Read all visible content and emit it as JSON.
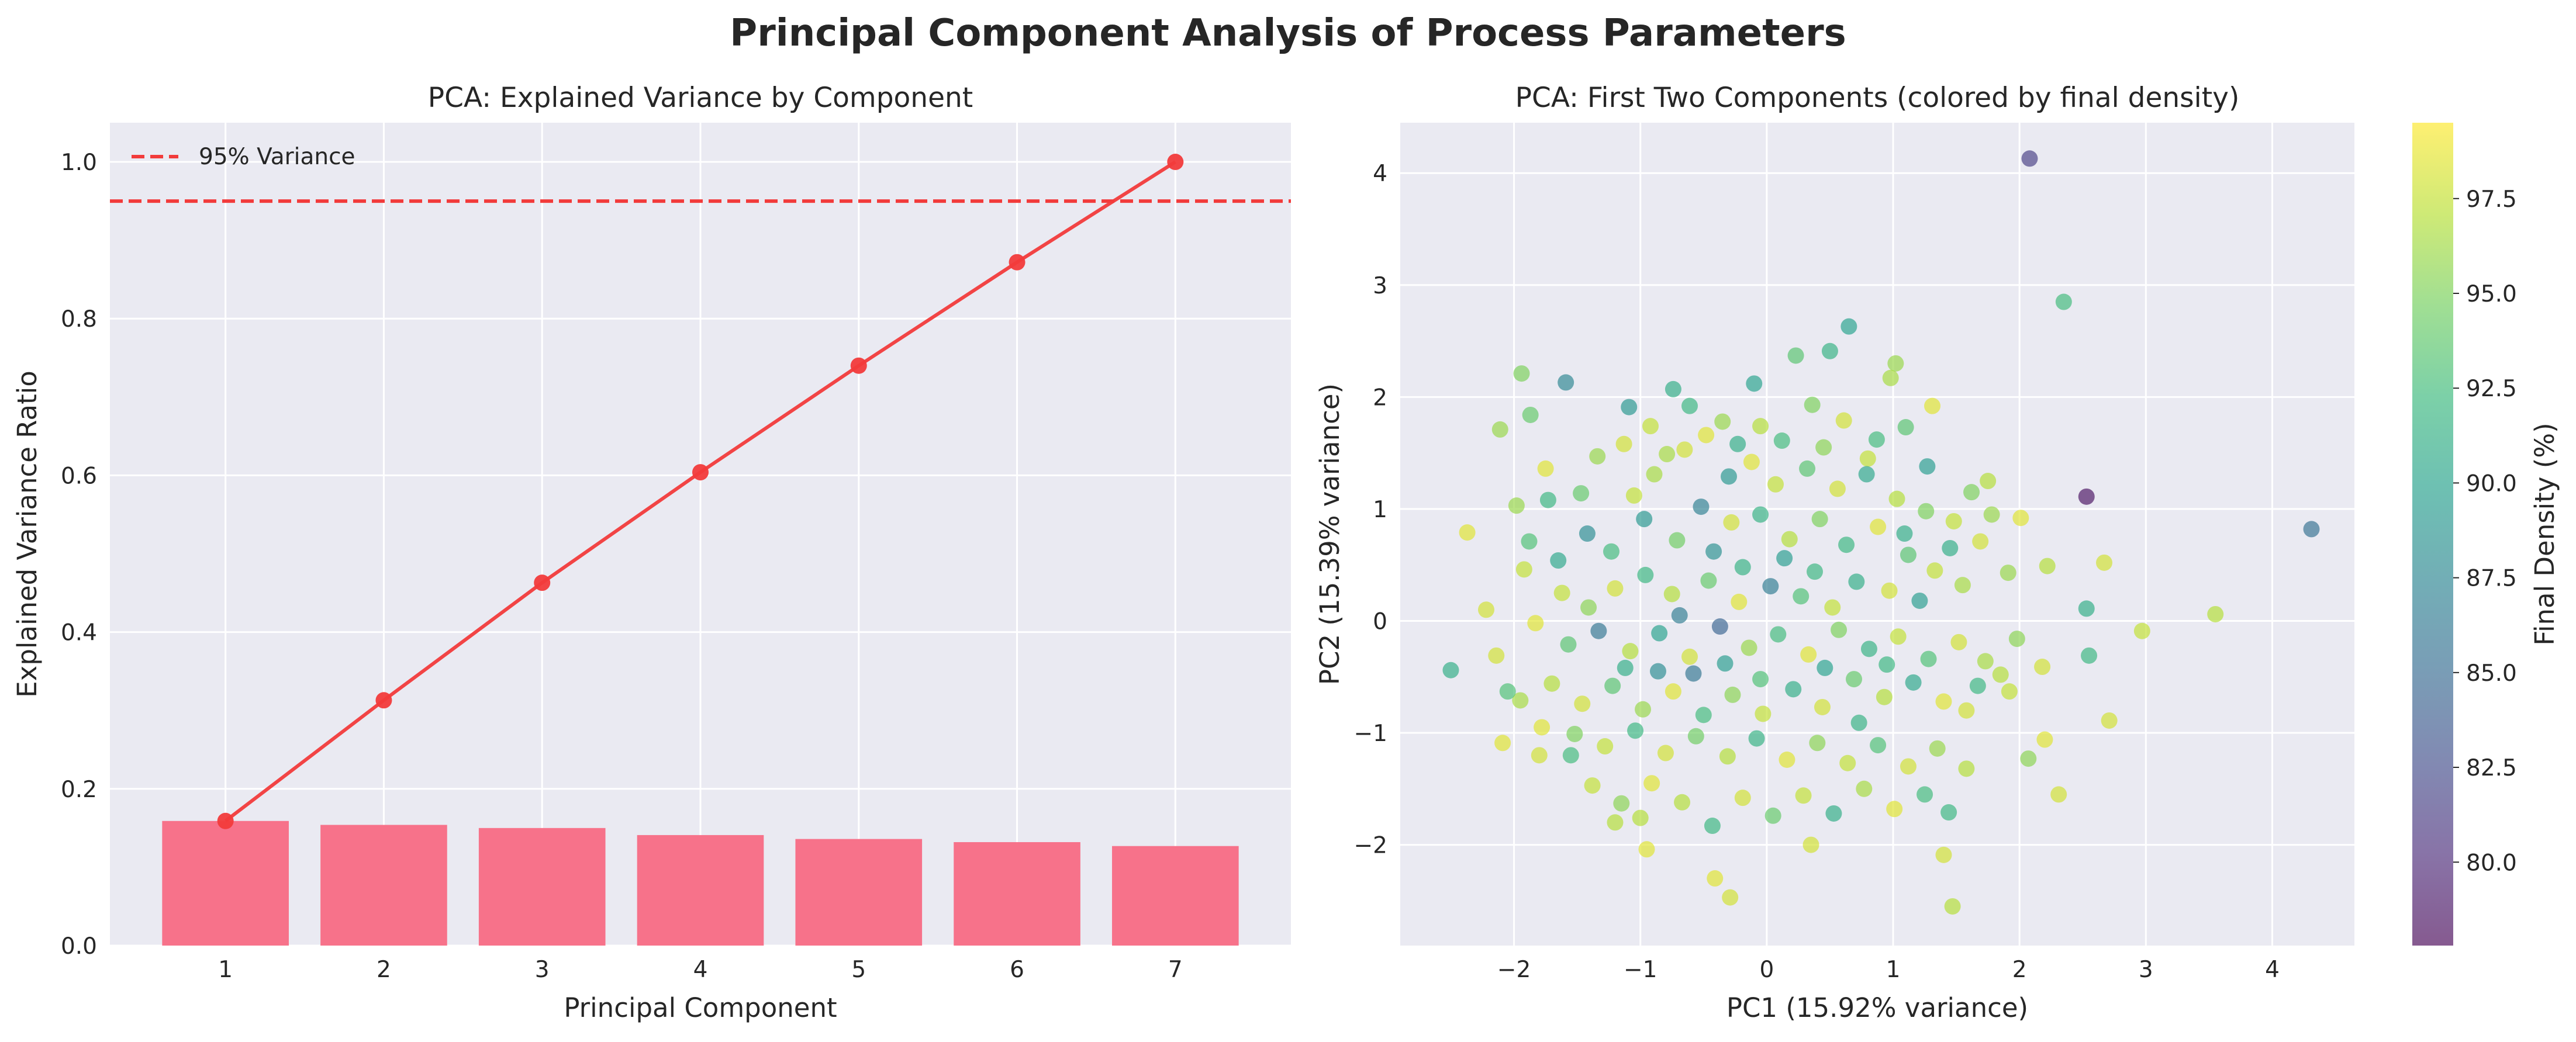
{
  "figure": {
    "suptitle": "Principal Component Analysis of Process Parameters",
    "colors": {
      "axes_bg": "#eaeaf2",
      "grid": "#ffffff",
      "bar": "#f7728a",
      "line": "#f23b3b",
      "threshold": "#f23b3b"
    }
  },
  "chart_data": [
    {
      "type": "bar",
      "title": "PCA: Explained Variance by Component",
      "xlabel": "Principal Component",
      "ylabel": "Explained Variance Ratio",
      "categories": [
        "1",
        "2",
        "3",
        "4",
        "5",
        "6",
        "7"
      ],
      "xlim": [
        0.27,
        7.73
      ],
      "ylim": [
        0,
        1.05
      ],
      "yticks": [
        0.0,
        0.2,
        0.4,
        0.6,
        0.8,
        1.0
      ],
      "ytick_labels": [
        "0.0",
        "0.2",
        "0.4",
        "0.6",
        "0.8",
        "1.0"
      ],
      "series": [
        {
          "type": "bar",
          "values": [
            0.159,
            0.154,
            0.15,
            0.141,
            0.136,
            0.132,
            0.127
          ]
        },
        {
          "type": "line",
          "values": [
            0.159,
            0.313,
            0.463,
            0.604,
            0.74,
            0.872,
            1.0
          ]
        }
      ],
      "threshold": {
        "value": 0.95,
        "label": "95% Variance",
        "style": "dashed"
      },
      "legend": {
        "position": "top-left",
        "entries": [
          "95% Variance"
        ]
      },
      "grid": true
    },
    {
      "type": "scatter",
      "title": "PCA: First Two Components (colored by final density)",
      "xlabel": "PC1 (15.92% variance)",
      "ylabel": "PC2 (15.39% variance)",
      "xlim": [
        -2.9,
        4.65
      ],
      "ylim": [
        -2.9,
        4.45
      ],
      "xticks": [
        -2,
        -1,
        0,
        1,
        2,
        3,
        4
      ],
      "xtick_labels": [
        "−2",
        "−1",
        "0",
        "1",
        "2",
        "3",
        "4"
      ],
      "yticks": [
        -2,
        -1,
        0,
        1,
        2,
        3,
        4
      ],
      "ytick_labels": [
        "−2",
        "−1",
        "0",
        "1",
        "2",
        "3",
        "4"
      ],
      "colormap": "viridis",
      "colorbar": {
        "label": "Final Density (%)",
        "range": [
          77.8,
          99.5
        ],
        "ticks": [
          80.0,
          82.5,
          85.0,
          87.5,
          90.0,
          92.5,
          95.0,
          97.5
        ],
        "tick_labels": [
          "80.0",
          "82.5",
          "85.0",
          "87.5",
          "90.0",
          "92.5",
          "95.0",
          "97.5"
        ]
      },
      "points": [
        {
          "x": 2.08,
          "y": 4.13,
          "c": 81.5
        },
        {
          "x": 2.35,
          "y": 2.85,
          "c": 92.5
        },
        {
          "x": 4.31,
          "y": 0.82,
          "c": 85.5
        },
        {
          "x": 2.53,
          "y": 1.11,
          "c": 78.5
        },
        {
          "x": 3.55,
          "y": 0.06,
          "c": 97.0
        },
        {
          "x": 2.97,
          "y": -0.09,
          "c": 97.5
        },
        {
          "x": 2.71,
          "y": -0.89,
          "c": 98.0
        },
        {
          "x": 2.55,
          "y": -0.31,
          "c": 92.0
        },
        {
          "x": 2.53,
          "y": 0.11,
          "c": 91.0
        },
        {
          "x": 2.67,
          "y": 0.52,
          "c": 98.0
        },
        {
          "x": 2.2,
          "y": -1.06,
          "c": 98.5
        },
        {
          "x": 2.31,
          "y": -1.55,
          "c": 98.0
        },
        {
          "x": 2.07,
          "y": -1.23,
          "c": 95.5
        },
        {
          "x": -2.5,
          "y": -0.44,
          "c": 91.0
        },
        {
          "x": -2.37,
          "y": 0.79,
          "c": 98.5
        },
        {
          "x": -2.22,
          "y": 0.1,
          "c": 98.0
        },
        {
          "x": -2.09,
          "y": -1.09,
          "c": 98.5
        },
        {
          "x": -2.11,
          "y": 1.71,
          "c": 96.0
        },
        {
          "x": -1.94,
          "y": 2.21,
          "c": 95.0
        },
        {
          "x": -1.87,
          "y": 1.84,
          "c": 94.0
        },
        {
          "x": -1.59,
          "y": 2.13,
          "c": 87.5
        },
        {
          "x": -0.74,
          "y": 2.07,
          "c": 91.0
        },
        {
          "x": 0.65,
          "y": 2.63,
          "c": 90.0
        },
        {
          "x": 0.5,
          "y": 2.41,
          "c": 91.5
        },
        {
          "x": 0.23,
          "y": 2.37,
          "c": 93.5
        },
        {
          "x": 1.02,
          "y": 2.3,
          "c": 96.0
        },
        {
          "x": 0.98,
          "y": 2.17,
          "c": 96.5
        },
        {
          "x": 1.31,
          "y": 1.92,
          "c": 98.5
        },
        {
          "x": -0.1,
          "y": 2.12,
          "c": 90.0
        },
        {
          "x": -0.35,
          "y": 1.78,
          "c": 96.0
        },
        {
          "x": -1.09,
          "y": 1.91,
          "c": 89.0
        },
        {
          "x": -0.41,
          "y": -2.3,
          "c": 98.5
        },
        {
          "x": -0.29,
          "y": -2.47,
          "c": 98.0
        },
        {
          "x": 1.47,
          "y": -2.55,
          "c": 97.0
        },
        {
          "x": 1.4,
          "y": -2.09,
          "c": 98.0
        },
        {
          "x": 0.35,
          "y": -2.0,
          "c": 98.0
        },
        {
          "x": -0.95,
          "y": -2.04,
          "c": 98.5
        },
        {
          "x": -1.0,
          "y": -1.76,
          "c": 97.0
        },
        {
          "x": -1.2,
          "y": -1.8,
          "c": 97.0
        },
        {
          "x": -1.55,
          "y": -1.2,
          "c": 92.5
        },
        {
          "x": -1.8,
          "y": -1.2,
          "c": 98.0
        },
        {
          "x": 1.44,
          "y": -1.71,
          "c": 92.0
        },
        {
          "x": 1.58,
          "y": -0.8,
          "c": 98.0
        },
        {
          "x": 1.85,
          "y": -0.48,
          "c": 97.0
        },
        {
          "x": 1.78,
          "y": 0.95,
          "c": 96.0
        },
        {
          "x": 1.62,
          "y": 1.15,
          "c": 95.0
        },
        {
          "x": 1.75,
          "y": 1.25,
          "c": 97.0
        },
        {
          "x": 1.45,
          "y": 0.65,
          "c": 91.0
        },
        {
          "x": 1.1,
          "y": 1.73,
          "c": 93.5
        },
        {
          "x": 1.27,
          "y": 1.38,
          "c": 89.5
        },
        {
          "x": 0.8,
          "y": 1.45,
          "c": 97.5
        },
        {
          "x": 0.45,
          "y": 1.55,
          "c": 95.5
        },
        {
          "x": 0.12,
          "y": 1.61,
          "c": 92.5
        },
        {
          "x": -0.12,
          "y": 1.42,
          "c": 98.5
        },
        {
          "x": -0.65,
          "y": 1.53,
          "c": 98.0
        },
        {
          "x": -0.89,
          "y": 1.31,
          "c": 96.5
        },
        {
          "x": -1.05,
          "y": 1.12,
          "c": 97.5
        },
        {
          "x": -1.47,
          "y": 1.14,
          "c": 94.0
        },
        {
          "x": -1.73,
          "y": 1.08,
          "c": 92.0
        },
        {
          "x": -1.98,
          "y": 1.03,
          "c": 96.0
        },
        {
          "x": -1.88,
          "y": 0.71,
          "c": 93.0
        },
        {
          "x": -1.65,
          "y": 0.54,
          "c": 90.5
        },
        {
          "x": -1.42,
          "y": 0.78,
          "c": 88.0
        },
        {
          "x": -1.23,
          "y": 0.62,
          "c": 92.5
        },
        {
          "x": -0.97,
          "y": 0.91,
          "c": 89.0
        },
        {
          "x": -0.71,
          "y": 0.72,
          "c": 94.5
        },
        {
          "x": -0.52,
          "y": 1.02,
          "c": 87.0
        },
        {
          "x": -0.28,
          "y": 0.88,
          "c": 98.0
        },
        {
          "x": -0.05,
          "y": 0.95,
          "c": 91.5
        },
        {
          "x": 0.18,
          "y": 0.73,
          "c": 97.0
        },
        {
          "x": 0.42,
          "y": 0.91,
          "c": 95.0
        },
        {
          "x": 0.63,
          "y": 0.68,
          "c": 92.0
        },
        {
          "x": 0.88,
          "y": 0.84,
          "c": 98.5
        },
        {
          "x": 1.12,
          "y": 0.59,
          "c": 93.5
        },
        {
          "x": 1.33,
          "y": 0.45,
          "c": 97.5
        },
        {
          "x": 1.55,
          "y": 0.32,
          "c": 96.5
        },
        {
          "x": 1.21,
          "y": 0.18,
          "c": 89.5
        },
        {
          "x": 0.97,
          "y": 0.27,
          "c": 98.0
        },
        {
          "x": 0.71,
          "y": 0.35,
          "c": 91.0
        },
        {
          "x": 0.52,
          "y": 0.12,
          "c": 97.5
        },
        {
          "x": 0.27,
          "y": 0.22,
          "c": 93.0
        },
        {
          "x": 0.03,
          "y": 0.31,
          "c": 86.5
        },
        {
          "x": -0.22,
          "y": 0.17,
          "c": 98.5
        },
        {
          "x": -0.46,
          "y": 0.36,
          "c": 94.0
        },
        {
          "x": -0.75,
          "y": 0.24,
          "c": 97.0
        },
        {
          "x": -0.96,
          "y": 0.41,
          "c": 92.0
        },
        {
          "x": -1.2,
          "y": 0.29,
          "c": 98.0
        },
        {
          "x": -1.41,
          "y": 0.12,
          "c": 95.5
        },
        {
          "x": -1.62,
          "y": 0.25,
          "c": 97.5
        },
        {
          "x": -1.83,
          "y": -0.02,
          "c": 98.5
        },
        {
          "x": -1.57,
          "y": -0.21,
          "c": 93.5
        },
        {
          "x": -1.33,
          "y": -0.09,
          "c": 86.0
        },
        {
          "x": -1.08,
          "y": -0.27,
          "c": 97.0
        },
        {
          "x": -0.85,
          "y": -0.11,
          "c": 90.0
        },
        {
          "x": -0.61,
          "y": -0.32,
          "c": 98.0
        },
        {
          "x": -0.37,
          "y": -0.05,
          "c": 84.5
        },
        {
          "x": -0.14,
          "y": -0.24,
          "c": 96.0
        },
        {
          "x": 0.09,
          "y": -0.12,
          "c": 92.5
        },
        {
          "x": 0.33,
          "y": -0.3,
          "c": 98.5
        },
        {
          "x": 0.57,
          "y": -0.08,
          "c": 95.0
        },
        {
          "x": 0.81,
          "y": -0.25,
          "c": 91.5
        },
        {
          "x": 1.04,
          "y": -0.14,
          "c": 97.5
        },
        {
          "x": 1.28,
          "y": -0.34,
          "c": 93.0
        },
        {
          "x": 1.52,
          "y": -0.19,
          "c": 98.0
        },
        {
          "x": 1.73,
          "y": -0.36,
          "c": 96.5
        },
        {
          "x": 1.92,
          "y": -0.63,
          "c": 97.5
        },
        {
          "x": 1.67,
          "y": -0.58,
          "c": 92.0
        },
        {
          "x": 1.4,
          "y": -0.72,
          "c": 98.5
        },
        {
          "x": 1.16,
          "y": -0.55,
          "c": 90.5
        },
        {
          "x": 0.93,
          "y": -0.68,
          "c": 97.0
        },
        {
          "x": 0.69,
          "y": -0.52,
          "c": 94.0
        },
        {
          "x": 0.44,
          "y": -0.77,
          "c": 98.0
        },
        {
          "x": 0.21,
          "y": -0.61,
          "c": 91.0
        },
        {
          "x": -0.03,
          "y": -0.83,
          "c": 97.5
        },
        {
          "x": -0.27,
          "y": -0.66,
          "c": 95.5
        },
        {
          "x": -0.5,
          "y": -0.84,
          "c": 92.5
        },
        {
          "x": -0.74,
          "y": -0.63,
          "c": 98.5
        },
        {
          "x": -0.98,
          "y": -0.79,
          "c": 96.0
        },
        {
          "x": -1.22,
          "y": -0.58,
          "c": 93.5
        },
        {
          "x": -1.46,
          "y": -0.74,
          "c": 98.0
        },
        {
          "x": -1.7,
          "y": -0.56,
          "c": 97.0
        },
        {
          "x": -1.95,
          "y": -0.71,
          "c": 96.5
        },
        {
          "x": -1.78,
          "y": -0.95,
          "c": 98.5
        },
        {
          "x": -1.52,
          "y": -1.01,
          "c": 95.0
        },
        {
          "x": -1.28,
          "y": -1.12,
          "c": 97.5
        },
        {
          "x": -1.04,
          "y": -0.98,
          "c": 92.0
        },
        {
          "x": -0.8,
          "y": -1.18,
          "c": 98.0
        },
        {
          "x": -0.56,
          "y": -1.03,
          "c": 94.5
        },
        {
          "x": -0.31,
          "y": -1.21,
          "c": 97.0
        },
        {
          "x": -0.08,
          "y": -1.05,
          "c": 91.5
        },
        {
          "x": 0.16,
          "y": -1.24,
          "c": 98.5
        },
        {
          "x": 0.4,
          "y": -1.09,
          "c": 95.5
        },
        {
          "x": 0.64,
          "y": -1.27,
          "c": 97.5
        },
        {
          "x": 0.88,
          "y": -1.11,
          "c": 93.0
        },
        {
          "x": 1.12,
          "y": -1.3,
          "c": 98.0
        },
        {
          "x": 1.35,
          "y": -1.14,
          "c": 96.0
        },
        {
          "x": 1.58,
          "y": -1.32,
          "c": 97.0
        },
        {
          "x": 1.25,
          "y": -1.55,
          "c": 92.5
        },
        {
          "x": 1.01,
          "y": -1.68,
          "c": 98.5
        },
        {
          "x": 0.77,
          "y": -1.5,
          "c": 96.5
        },
        {
          "x": 0.53,
          "y": -1.72,
          "c": 91.0
        },
        {
          "x": 0.29,
          "y": -1.56,
          "c": 97.5
        },
        {
          "x": 0.05,
          "y": -1.74,
          "c": 94.0
        },
        {
          "x": -0.19,
          "y": -1.58,
          "c": 98.0
        },
        {
          "x": -0.43,
          "y": -1.83,
          "c": 92.0
        },
        {
          "x": -0.67,
          "y": -1.62,
          "c": 97.0
        },
        {
          "x": -0.91,
          "y": -1.45,
          "c": 98.5
        },
        {
          "x": -1.15,
          "y": -1.63,
          "c": 95.5
        },
        {
          "x": -1.38,
          "y": -1.47,
          "c": 97.5
        },
        {
          "x": -0.05,
          "y": 1.74,
          "c": 97.0
        },
        {
          "x": 0.36,
          "y": 1.93,
          "c": 95.0
        },
        {
          "x": 0.61,
          "y": 1.79,
          "c": 98.0
        },
        {
          "x": 0.87,
          "y": 1.62,
          "c": 92.5
        },
        {
          "x": -0.23,
          "y": 1.58,
          "c": 91.0
        },
        {
          "x": -0.48,
          "y": 1.66,
          "c": 98.5
        },
        {
          "x": -0.79,
          "y": 1.49,
          "c": 96.5
        },
        {
          "x": 1.48,
          "y": 0.89,
          "c": 97.5
        },
        {
          "x": 1.69,
          "y": 0.71,
          "c": 98.0
        },
        {
          "x": 1.91,
          "y": 0.43,
          "c": 96.0
        },
        {
          "x": 2.01,
          "y": 0.92,
          "c": 98.5
        },
        {
          "x": 2.22,
          "y": 0.49,
          "c": 97.0
        },
        {
          "x": 2.18,
          "y": -0.41,
          "c": 98.0
        },
        {
          "x": 1.98,
          "y": -0.16,
          "c": 95.5
        },
        {
          "x": -2.05,
          "y": -0.63,
          "c": 93.0
        },
        {
          "x": -2.14,
          "y": -0.31,
          "c": 98.0
        },
        {
          "x": -1.92,
          "y": 0.46,
          "c": 97.5
        },
        {
          "x": -1.75,
          "y": 1.36,
          "c": 98.5
        },
        {
          "x": -1.34,
          "y": 1.47,
          "c": 96.0
        },
        {
          "x": -1.13,
          "y": 1.58,
          "c": 98.0
        },
        {
          "x": -0.92,
          "y": 1.74,
          "c": 97.5
        },
        {
          "x": -0.61,
          "y": 1.92,
          "c": 92.0
        },
        {
          "x": -0.3,
          "y": 1.29,
          "c": 89.0
        },
        {
          "x": 0.07,
          "y": 1.22,
          "c": 97.5
        },
        {
          "x": 0.32,
          "y": 1.36,
          "c": 93.5
        },
        {
          "x": 0.56,
          "y": 1.18,
          "c": 98.0
        },
        {
          "x": 0.79,
          "y": 1.31,
          "c": 90.5
        },
        {
          "x": 1.03,
          "y": 1.09,
          "c": 97.0
        },
        {
          "x": 1.26,
          "y": 0.98,
          "c": 95.0
        },
        {
          "x": -0.42,
          "y": 0.62,
          "c": 88.5
        },
        {
          "x": -0.19,
          "y": 0.48,
          "c": 91.5
        },
        {
          "x": 0.14,
          "y": 0.56,
          "c": 89.5
        },
        {
          "x": 0.38,
          "y": 0.44,
          "c": 92.0
        },
        {
          "x": -0.58,
          "y": -0.47,
          "c": 86.0
        },
        {
          "x": -0.33,
          "y": -0.38,
          "c": 89.5
        },
        {
          "x": 0.46,
          "y": -0.42,
          "c": 90.0
        },
        {
          "x": 0.73,
          "y": -0.91,
          "c": 91.5
        },
        {
          "x": -0.86,
          "y": -0.45,
          "c": 88.0
        },
        {
          "x": -1.12,
          "y": -0.42,
          "c": 91.0
        },
        {
          "x": -0.05,
          "y": -0.52,
          "c": 93.0
        },
        {
          "x": 1.09,
          "y": 0.78,
          "c": 91.0
        },
        {
          "x": -0.69,
          "y": 0.05,
          "c": 86.5
        },
        {
          "x": 0.95,
          "y": -0.39,
          "c": 92.0
        }
      ]
    }
  ]
}
